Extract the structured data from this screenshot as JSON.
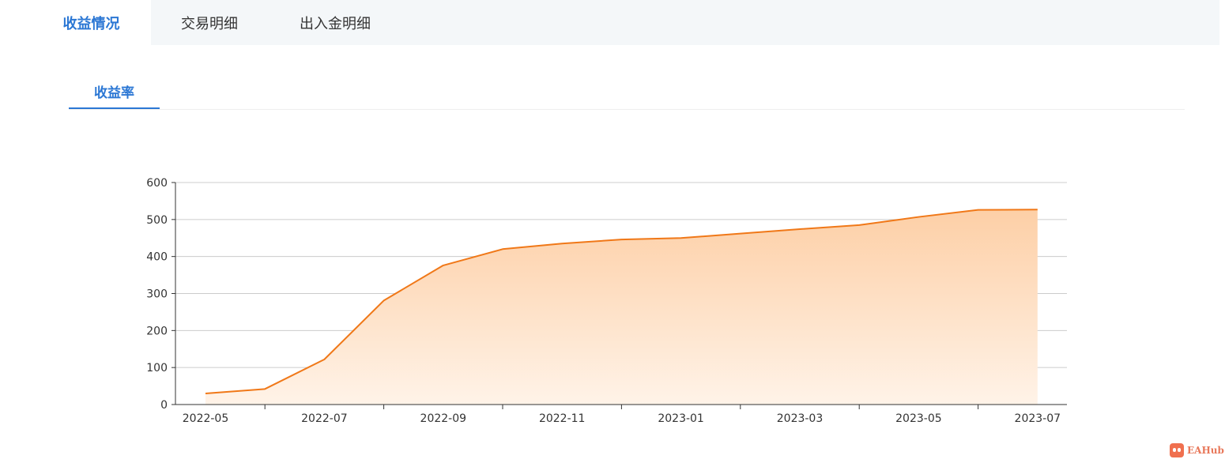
{
  "tabs": [
    {
      "label": "收益情况",
      "active": true
    },
    {
      "label": "交易明细",
      "active": false
    },
    {
      "label": "出入金明细",
      "active": false
    }
  ],
  "sub_tabs": [
    {
      "label": "收益率",
      "active": true
    }
  ],
  "watermark": {
    "text": "EAHub"
  },
  "colors": {
    "accent": "#2b77d4",
    "line": "#f07818",
    "area_top": "#fdcfa6",
    "area_bottom": "#fff3e8",
    "grid": "#cccccc"
  },
  "chart_data": {
    "type": "area",
    "title": "",
    "xlabel": "",
    "ylabel": "",
    "x": [
      "2022-05",
      "2022-06",
      "2022-07",
      "2022-08",
      "2022-09",
      "2022-10",
      "2022-11",
      "2022-12",
      "2023-01",
      "2023-02",
      "2023-03",
      "2023-04",
      "2023-05",
      "2023-06",
      "2023-07"
    ],
    "x_tick_labels": [
      "2022-05",
      "2022-07",
      "2022-09",
      "2022-11",
      "2023-01",
      "2023-03",
      "2023-05",
      "2023-07"
    ],
    "values": [
      30,
      42,
      122,
      281,
      376,
      420,
      435,
      446,
      450,
      462,
      474,
      485,
      507,
      526,
      527
    ],
    "ylim": [
      0,
      600
    ],
    "y_ticks": [
      0,
      100,
      200,
      300,
      400,
      500,
      600
    ],
    "grid": true,
    "legend": "none"
  }
}
